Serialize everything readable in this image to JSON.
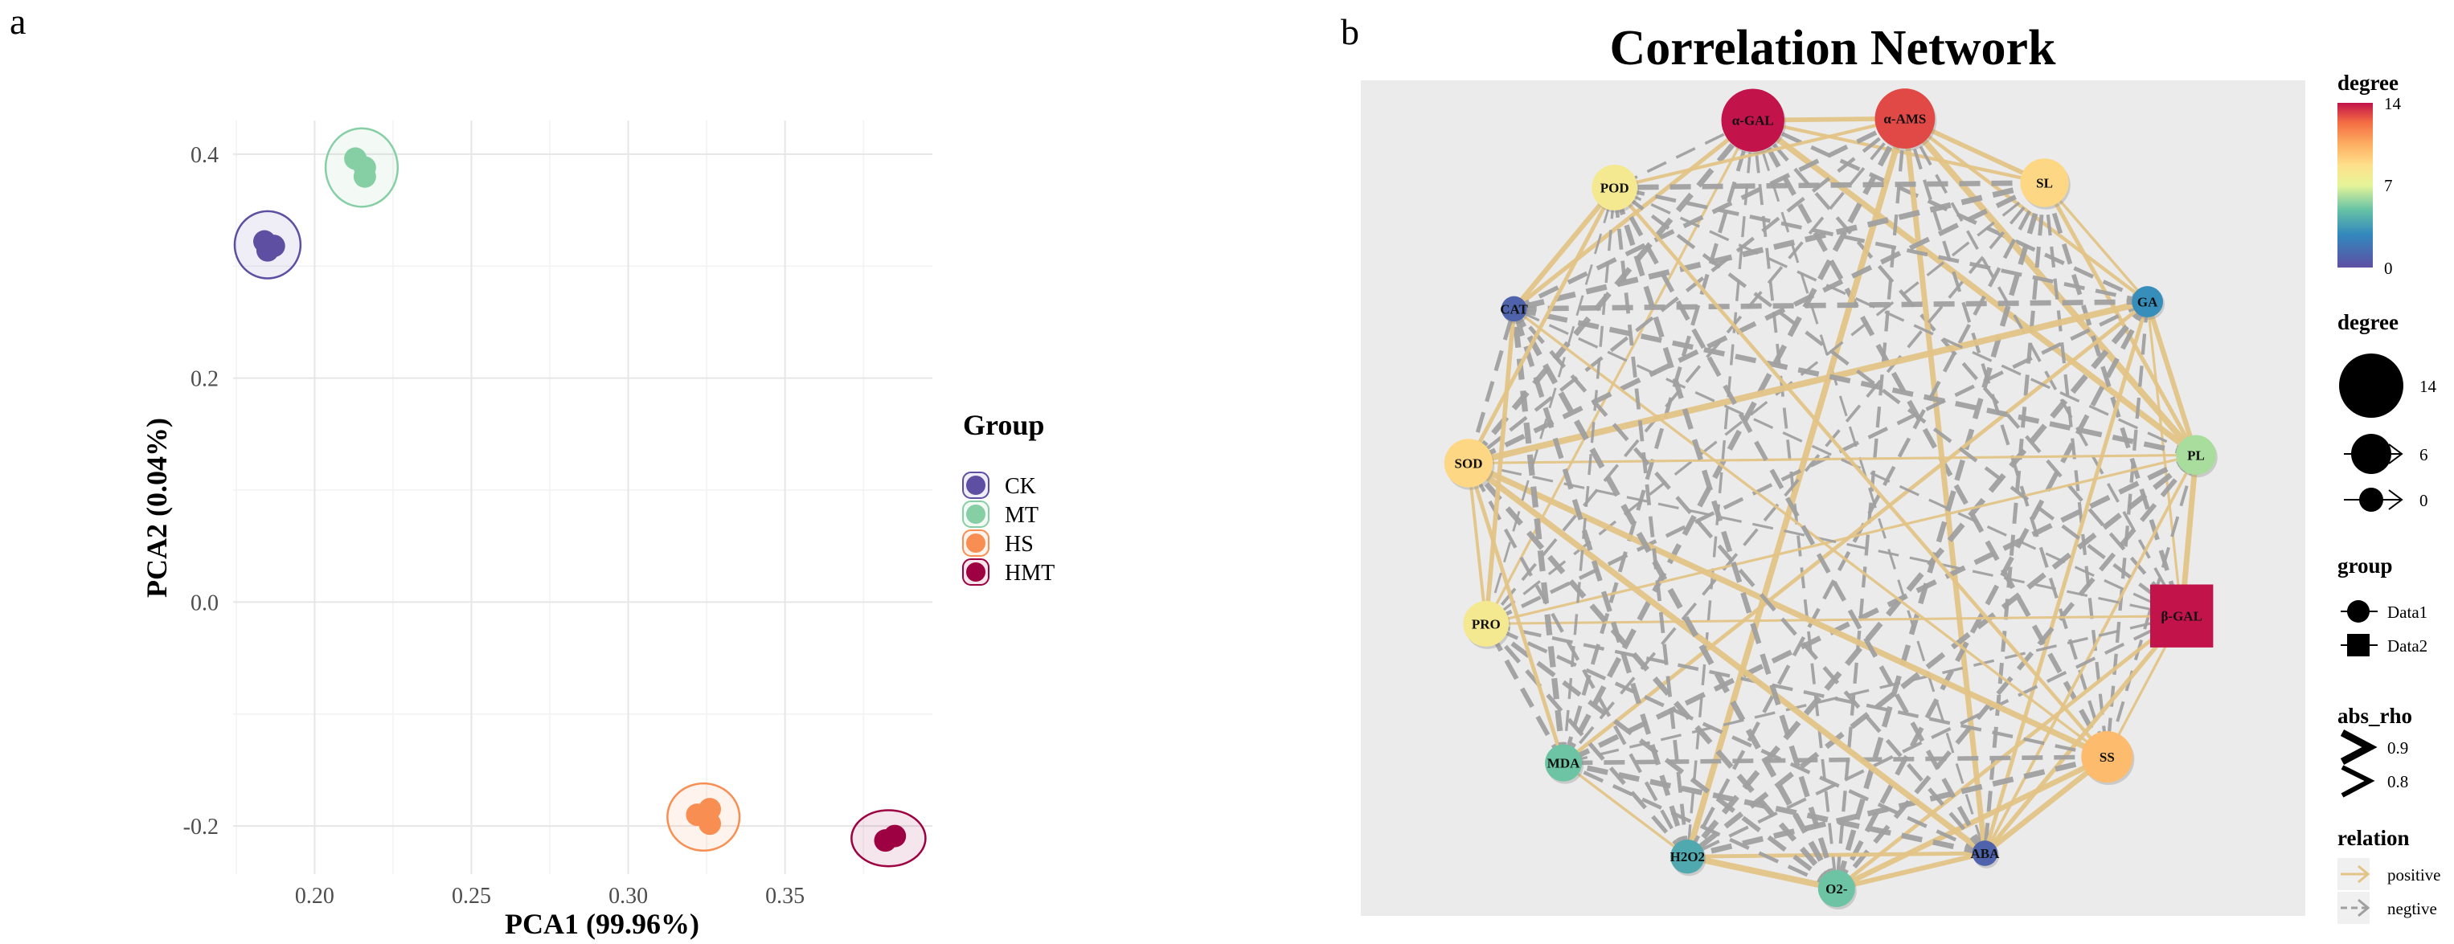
{
  "panels": {
    "a": "a",
    "b": "b"
  },
  "chart_data": [
    {
      "type": "scatter",
      "xlabel": "PCA1 (99.96%)",
      "ylabel": "PCA2 (0.04%)",
      "xlim": [
        0.174,
        0.397
      ],
      "ylim": [
        -0.243,
        0.43
      ],
      "xticks": [
        0.2,
        0.25,
        0.3,
        0.35
      ],
      "xtick_labels": [
        "0.20",
        "0.25",
        "0.30",
        "0.35"
      ],
      "yticks": [
        -0.2,
        0.0,
        0.2,
        0.4
      ],
      "ytick_labels": [
        "-0.2",
        "0.0",
        "0.2",
        "0.4"
      ],
      "grid": true,
      "legend": {
        "title": "Group",
        "placement": "right"
      },
      "series": [
        {
          "name": "CK",
          "color": "#5e4fa2",
          "points": [
            [
              0.184,
              0.322
            ],
            [
              0.187,
              0.318
            ],
            [
              0.185,
              0.314
            ]
          ],
          "ellipse": {
            "cx": 0.185,
            "cy": 0.319,
            "rx": 0.0105,
            "ry": 0.03
          }
        },
        {
          "name": "MT",
          "color": "#86cfa5",
          "points": [
            [
              0.213,
              0.396
            ],
            [
              0.216,
              0.388
            ],
            [
              0.216,
              0.38
            ]
          ],
          "ellipse": {
            "cx": 0.215,
            "cy": 0.388,
            "rx": 0.0115,
            "ry": 0.035
          }
        },
        {
          "name": "HS",
          "color": "#f98e52",
          "points": [
            [
              0.322,
              -0.19
            ],
            [
              0.326,
              -0.185
            ],
            [
              0.326,
              -0.198
            ]
          ],
          "ellipse": {
            "cx": 0.324,
            "cy": -0.192,
            "rx": 0.0115,
            "ry": 0.03
          }
        },
        {
          "name": "HMT",
          "color": "#9e0142",
          "points": [
            [
              0.382,
              -0.213
            ],
            [
              0.385,
              -0.209
            ]
          ],
          "ellipse": {
            "cx": 0.383,
            "cy": -0.211,
            "rx": 0.0118,
            "ry": 0.025
          }
        }
      ]
    },
    {
      "type": "network",
      "title": "Correlation Network",
      "nodes": [
        {
          "id": "α-GAL",
          "degree": 14,
          "group": "Data1"
        },
        {
          "id": "α-AMS",
          "degree": 13,
          "group": "Data1"
        },
        {
          "id": "SL",
          "degree": 9,
          "group": "Data1"
        },
        {
          "id": "GA",
          "degree": 3,
          "group": "Data1"
        },
        {
          "id": "PL",
          "degree": 6,
          "group": "Data1"
        },
        {
          "id": "β-GAL",
          "degree": 14,
          "group": "Data2"
        },
        {
          "id": "SS",
          "degree": 10,
          "group": "Data1"
        },
        {
          "id": "ABA",
          "degree": 1,
          "group": "Data1"
        },
        {
          "id": "O2-",
          "degree": 5,
          "group": "Data1"
        },
        {
          "id": "H2O2",
          "degree": 4,
          "group": "Data1"
        },
        {
          "id": "MDA",
          "degree": 5,
          "group": "Data1"
        },
        {
          "id": "PRO",
          "degree": 8,
          "group": "Data1"
        },
        {
          "id": "SOD",
          "degree": 9,
          "group": "Data1"
        },
        {
          "id": "CAT",
          "degree": 1,
          "group": "Data1"
        },
        {
          "id": "POD",
          "degree": 8,
          "group": "Data1"
        }
      ],
      "legends": {
        "degree_color": {
          "title": "degree",
          "min": 0,
          "mid": 7,
          "max": 14,
          "labels": [
            "14",
            "7",
            "0"
          ]
        },
        "degree_size": {
          "title": "degree",
          "labels": [
            "14",
            "6",
            "0"
          ]
        },
        "group": {
          "title": "group",
          "items": [
            "Data1",
            "Data2"
          ]
        },
        "abs_rho": {
          "title": "abs_rho",
          "items": [
            "0.9",
            "0.8"
          ]
        },
        "relation": {
          "title": "relation",
          "items": [
            "positive",
            "negtive"
          ],
          "colors": {
            "positive": "#e3c486",
            "negtive": "#a0a0a0"
          }
        }
      }
    }
  ]
}
